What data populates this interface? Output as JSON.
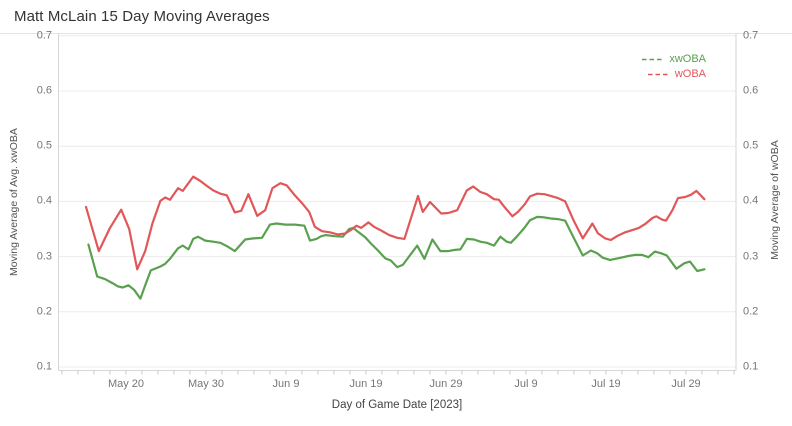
{
  "chart_data": {
    "type": "line",
    "title": "Matt McLain 15 Day Moving Averages",
    "xlabel": "Day of Game Date [2023]",
    "ylabel_left": "Moving Average of Avg. xwOBA",
    "ylabel_right": "Moving Average of wOBA",
    "ylim": [
      0.1,
      0.7
    ],
    "y_ticks": [
      "0.7",
      "0.6",
      "0.5",
      "0.4",
      "0.3",
      "0.2",
      "0.1"
    ],
    "x_ticks": [
      {
        "label": "May 20",
        "day": 5
      },
      {
        "label": "May 30",
        "day": 15
      },
      {
        "label": "Jun 9",
        "day": 25
      },
      {
        "label": "Jun 19",
        "day": 35
      },
      {
        "label": "Jun 29",
        "day": 45
      },
      {
        "label": "Jul 9",
        "day": 55
      },
      {
        "label": "Jul 19",
        "day": 65
      },
      {
        "label": "Jul 29",
        "day": 75
      }
    ],
    "x_unit": "days since May 15 2023 (first plotted game date)",
    "grid": "horizontal-only",
    "legend_position": "top-right-inside",
    "line_style": "solid, legend swatch shown as dashes",
    "series": [
      {
        "name": "xwOBA",
        "color": "#59a14f",
        "points": [
          [
            0.3,
            0.322
          ],
          [
            1.4,
            0.264
          ],
          [
            2.4,
            0.259
          ],
          [
            3.3,
            0.252
          ],
          [
            4.0,
            0.246
          ],
          [
            4.6,
            0.244
          ],
          [
            5.3,
            0.248
          ],
          [
            6.0,
            0.24
          ],
          [
            6.8,
            0.224
          ],
          [
            7.5,
            0.252
          ],
          [
            8.1,
            0.275
          ],
          [
            9.3,
            0.282
          ],
          [
            9.9,
            0.287
          ],
          [
            10.5,
            0.296
          ],
          [
            11.5,
            0.315
          ],
          [
            12.1,
            0.32
          ],
          [
            12.8,
            0.313
          ],
          [
            13.4,
            0.332
          ],
          [
            14.0,
            0.336
          ],
          [
            14.9,
            0.329
          ],
          [
            15.9,
            0.327
          ],
          [
            16.8,
            0.325
          ],
          [
            17.6,
            0.319
          ],
          [
            18.6,
            0.31
          ],
          [
            19.9,
            0.331
          ],
          [
            20.9,
            0.333
          ],
          [
            22.0,
            0.334
          ],
          [
            23.0,
            0.358
          ],
          [
            23.8,
            0.36
          ],
          [
            24.9,
            0.358
          ],
          [
            26.1,
            0.358
          ],
          [
            27.3,
            0.356
          ],
          [
            28.0,
            0.329
          ],
          [
            28.8,
            0.332
          ],
          [
            29.4,
            0.337
          ],
          [
            30.0,
            0.339
          ],
          [
            31.1,
            0.337
          ],
          [
            32.1,
            0.336
          ],
          [
            32.9,
            0.35
          ],
          [
            33.4,
            0.352
          ],
          [
            34.0,
            0.345
          ],
          [
            34.9,
            0.335
          ],
          [
            35.6,
            0.324
          ],
          [
            36.5,
            0.311
          ],
          [
            37.4,
            0.297
          ],
          [
            38.1,
            0.293
          ],
          [
            38.9,
            0.281
          ],
          [
            39.6,
            0.285
          ],
          [
            41.4,
            0.32
          ],
          [
            42.3,
            0.296
          ],
          [
            43.3,
            0.331
          ],
          [
            44.3,
            0.31
          ],
          [
            45.3,
            0.31
          ],
          [
            46.0,
            0.312
          ],
          [
            46.8,
            0.313
          ],
          [
            47.6,
            0.332
          ],
          [
            48.5,
            0.331
          ],
          [
            49.3,
            0.327
          ],
          [
            50.1,
            0.325
          ],
          [
            51.0,
            0.32
          ],
          [
            51.8,
            0.336
          ],
          [
            52.6,
            0.327
          ],
          [
            53.1,
            0.325
          ],
          [
            53.9,
            0.337
          ],
          [
            54.8,
            0.352
          ],
          [
            55.5,
            0.366
          ],
          [
            56.4,
            0.372
          ],
          [
            57.3,
            0.371
          ],
          [
            58.1,
            0.369
          ],
          [
            59.0,
            0.368
          ],
          [
            59.9,
            0.365
          ],
          [
            61.0,
            0.333
          ],
          [
            62.1,
            0.302
          ],
          [
            63.1,
            0.311
          ],
          [
            63.9,
            0.306
          ],
          [
            64.6,
            0.298
          ],
          [
            65.5,
            0.294
          ],
          [
            66.5,
            0.297
          ],
          [
            67.8,
            0.301
          ],
          [
            68.6,
            0.303
          ],
          [
            69.5,
            0.303
          ],
          [
            70.3,
            0.299
          ],
          [
            71.1,
            0.309
          ],
          [
            71.9,
            0.306
          ],
          [
            72.6,
            0.302
          ],
          [
            73.8,
            0.278
          ],
          [
            74.8,
            0.288
          ],
          [
            75.5,
            0.291
          ],
          [
            76.4,
            0.274
          ],
          [
            77.3,
            0.277
          ]
        ]
      },
      {
        "name": "wOBA",
        "color": "#e15759",
        "points": [
          [
            0.0,
            0.39
          ],
          [
            1.6,
            0.31
          ],
          [
            3.0,
            0.352
          ],
          [
            4.4,
            0.385
          ],
          [
            5.4,
            0.35
          ],
          [
            6.4,
            0.277
          ],
          [
            7.4,
            0.31
          ],
          [
            8.3,
            0.36
          ],
          [
            9.3,
            0.401
          ],
          [
            9.9,
            0.407
          ],
          [
            10.5,
            0.403
          ],
          [
            11.5,
            0.424
          ],
          [
            12.1,
            0.419
          ],
          [
            13.4,
            0.445
          ],
          [
            14.3,
            0.437
          ],
          [
            15.1,
            0.428
          ],
          [
            15.9,
            0.42
          ],
          [
            16.8,
            0.414
          ],
          [
            17.6,
            0.411
          ],
          [
            18.6,
            0.38
          ],
          [
            19.4,
            0.383
          ],
          [
            20.3,
            0.413
          ],
          [
            21.4,
            0.374
          ],
          [
            22.4,
            0.384
          ],
          [
            23.3,
            0.424
          ],
          [
            24.3,
            0.433
          ],
          [
            25.1,
            0.429
          ],
          [
            26.1,
            0.411
          ],
          [
            27.0,
            0.397
          ],
          [
            27.9,
            0.381
          ],
          [
            28.6,
            0.354
          ],
          [
            29.5,
            0.346
          ],
          [
            30.5,
            0.344
          ],
          [
            31.5,
            0.34
          ],
          [
            32.4,
            0.342
          ],
          [
            33.1,
            0.348
          ],
          [
            33.8,
            0.356
          ],
          [
            34.4,
            0.352
          ],
          [
            35.3,
            0.362
          ],
          [
            36.0,
            0.354
          ],
          [
            36.8,
            0.348
          ],
          [
            37.9,
            0.339
          ],
          [
            38.9,
            0.334
          ],
          [
            39.8,
            0.332
          ],
          [
            41.5,
            0.41
          ],
          [
            42.1,
            0.381
          ],
          [
            43.0,
            0.399
          ],
          [
            44.4,
            0.378
          ],
          [
            45.3,
            0.379
          ],
          [
            46.4,
            0.384
          ],
          [
            47.6,
            0.42
          ],
          [
            48.4,
            0.427
          ],
          [
            49.3,
            0.417
          ],
          [
            50.1,
            0.413
          ],
          [
            51.0,
            0.404
          ],
          [
            51.6,
            0.403
          ],
          [
            52.3,
            0.39
          ],
          [
            53.3,
            0.373
          ],
          [
            54.0,
            0.381
          ],
          [
            54.8,
            0.394
          ],
          [
            55.5,
            0.409
          ],
          [
            56.4,
            0.414
          ],
          [
            57.3,
            0.413
          ],
          [
            58.1,
            0.41
          ],
          [
            59.0,
            0.406
          ],
          [
            59.9,
            0.4
          ],
          [
            61.0,
            0.364
          ],
          [
            62.1,
            0.333
          ],
          [
            63.3,
            0.36
          ],
          [
            64.0,
            0.342
          ],
          [
            64.9,
            0.333
          ],
          [
            65.6,
            0.33
          ],
          [
            66.5,
            0.338
          ],
          [
            67.4,
            0.344
          ],
          [
            68.3,
            0.348
          ],
          [
            69.1,
            0.352
          ],
          [
            69.9,
            0.359
          ],
          [
            70.8,
            0.37
          ],
          [
            71.3,
            0.373
          ],
          [
            72.0,
            0.367
          ],
          [
            72.5,
            0.365
          ],
          [
            73.3,
            0.384
          ],
          [
            74.0,
            0.406
          ],
          [
            74.9,
            0.408
          ],
          [
            75.6,
            0.412
          ],
          [
            76.3,
            0.419
          ],
          [
            77.3,
            0.404
          ]
        ]
      }
    ]
  },
  "legend": {
    "items": [
      {
        "label": "xwOBA",
        "color": "#59a14f"
      },
      {
        "label": "wOBA",
        "color": "#e15759"
      }
    ]
  },
  "colors": {
    "title_text": "#333333",
    "tick_text": "#767676",
    "axis_title_text": "#555555",
    "gridline": "#ececec",
    "axis_line": "#d6d6d6",
    "tick_mark": "#c9c9c9",
    "background": "#ffffff"
  }
}
